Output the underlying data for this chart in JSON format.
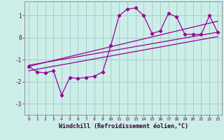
{
  "xlabel": "Windchill (Refroidissement éolien,°C)",
  "bg_color": "#cceee8",
  "line_color": "#990099",
  "grid_color": "#aacccc",
  "xlim": [
    -0.5,
    23.5
  ],
  "ylim": [
    -3.5,
    1.65
  ],
  "xticks": [
    0,
    1,
    2,
    3,
    4,
    5,
    6,
    7,
    8,
    9,
    10,
    11,
    12,
    13,
    14,
    15,
    16,
    17,
    18,
    19,
    20,
    21,
    22,
    23
  ],
  "yticks": [
    -3,
    -2,
    -1,
    0,
    1
  ],
  "data_x": [
    0,
    1,
    2,
    3,
    4,
    5,
    6,
    7,
    8,
    9,
    10,
    11,
    12,
    13,
    14,
    15,
    16,
    17,
    18,
    19,
    20,
    21,
    22,
    23
  ],
  "data_y": [
    -1.3,
    -1.55,
    -1.6,
    -1.5,
    -2.6,
    -1.8,
    -1.85,
    -1.8,
    -1.75,
    -1.55,
    -0.35,
    1.0,
    1.3,
    1.35,
    1.0,
    0.2,
    0.3,
    1.1,
    0.95,
    0.15,
    0.15,
    0.15,
    1.0,
    0.25
  ],
  "line1_x": [
    0,
    23
  ],
  "line1_y": [
    -1.25,
    0.25
  ],
  "line2_x": [
    0,
    23
  ],
  "line2_y": [
    -1.5,
    0.05
  ],
  "line3_x": [
    0,
    23
  ],
  "line3_y": [
    -1.3,
    0.75
  ]
}
